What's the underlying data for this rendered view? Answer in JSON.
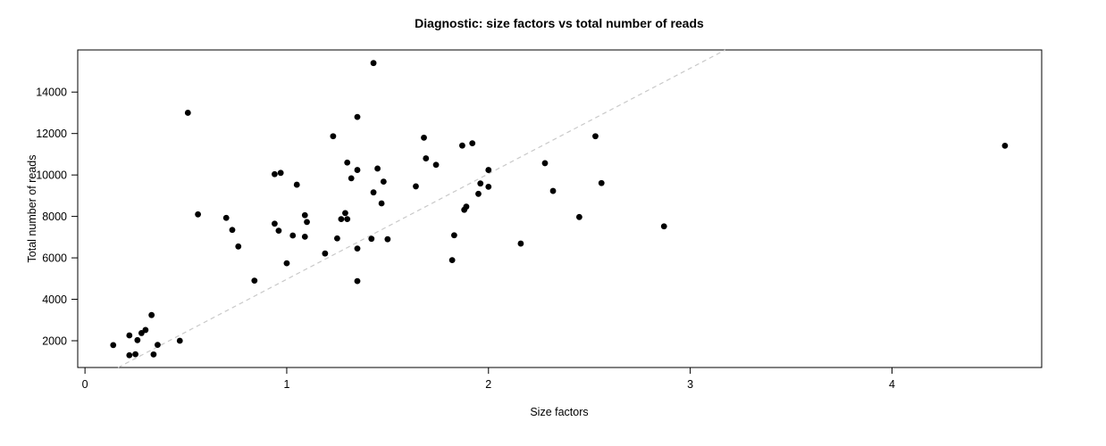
{
  "chart_data": {
    "type": "scatter",
    "title": "Diagnostic: size factors vs total number of reads",
    "xlabel": "Size factors",
    "ylabel": "Total number of reads",
    "xlim": [
      -0.036,
      4.742
    ],
    "ylim": [
      709,
      16033
    ],
    "x_ticks": [
      0,
      1,
      2,
      3,
      4
    ],
    "y_ticks": [
      2000,
      4000,
      6000,
      8000,
      10000,
      12000,
      14000
    ],
    "grid": false,
    "legend": "none",
    "point_color": "#000000",
    "background_color": "#ffffff",
    "box_color": "#000000",
    "diagonal_line": {
      "style": "dashed",
      "color": "#c9c9c9",
      "x1": 0.164,
      "y1": 710,
      "x2": 3.173,
      "y2": 16030
    },
    "points": [
      [
        0.51,
        13000
      ],
      [
        1.23,
        11870
      ],
      [
        1.35,
        12800
      ],
      [
        1.3,
        10600
      ],
      [
        1.35,
        10240
      ],
      [
        1.32,
        9840
      ],
      [
        0.94,
        10040
      ],
      [
        0.97,
        10100
      ],
      [
        1.05,
        9530
      ],
      [
        1.43,
        15400
      ],
      [
        1.68,
        11800
      ],
      [
        1.87,
        11420
      ],
      [
        1.92,
        11530
      ],
      [
        2.53,
        11870
      ],
      [
        1.69,
        10800
      ],
      [
        1.74,
        10490
      ],
      [
        1.45,
        10310
      ],
      [
        1.48,
        9680
      ],
      [
        1.43,
        9160
      ],
      [
        1.47,
        8630
      ],
      [
        1.64,
        9450
      ],
      [
        2.0,
        10240
      ],
      [
        1.96,
        9590
      ],
      [
        2.0,
        9430
      ],
      [
        1.95,
        9090
      ],
      [
        2.28,
        10570
      ],
      [
        2.32,
        9230
      ],
      [
        2.56,
        9610
      ],
      [
        1.88,
        8320
      ],
      [
        1.89,
        8470
      ],
      [
        0.56,
        8100
      ],
      [
        0.7,
        7930
      ],
      [
        0.73,
        7350
      ],
      [
        0.76,
        6550
      ],
      [
        0.94,
        7650
      ],
      [
        0.96,
        7310
      ],
      [
        1.03,
        7080
      ],
      [
        1.09,
        8060
      ],
      [
        1.1,
        7730
      ],
      [
        1.09,
        7020
      ],
      [
        1.25,
        6940
      ],
      [
        1.19,
        6210
      ],
      [
        1.29,
        8160
      ],
      [
        1.27,
        7870
      ],
      [
        1.3,
        7870
      ],
      [
        1.35,
        6450
      ],
      [
        1.0,
        5740
      ],
      [
        0.84,
        4900
      ],
      [
        1.35,
        4880
      ],
      [
        2.45,
        7970
      ],
      [
        1.42,
        6920
      ],
      [
        1.5,
        6900
      ],
      [
        1.83,
        7090
      ],
      [
        2.16,
        6690
      ],
      [
        1.82,
        5890
      ],
      [
        2.87,
        7520
      ],
      [
        4.56,
        11410
      ],
      [
        0.14,
        1790
      ],
      [
        0.22,
        2260
      ],
      [
        0.26,
        2030
      ],
      [
        0.28,
        2370
      ],
      [
        0.3,
        2520
      ],
      [
        0.33,
        3240
      ],
      [
        0.22,
        1300
      ],
      [
        0.25,
        1350
      ],
      [
        0.34,
        1340
      ],
      [
        0.36,
        1800
      ],
      [
        0.47,
        2000
      ]
    ]
  }
}
